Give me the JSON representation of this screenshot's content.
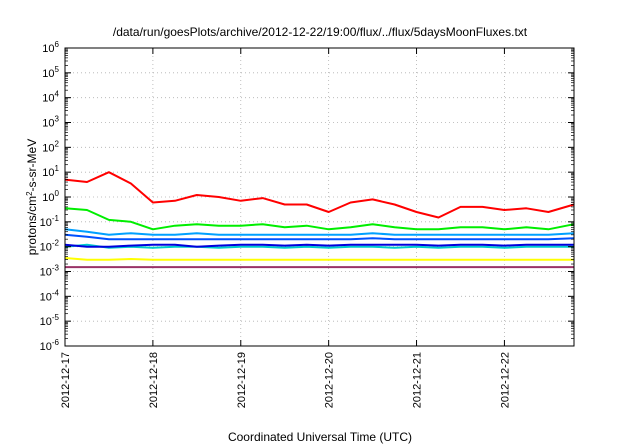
{
  "chart_data": {
    "type": "line",
    "title": "/data/run/goesPlots/archive/2012-12-22/19:00/flux/../flux/5daysMoonFluxes.txt",
    "xlabel": "Coordinated Universal Time (UTC)",
    "ylabel": "protons/cm2-s-sr-MeV",
    "y_scale": "log",
    "ylim": [
      1e-06,
      1000000.0
    ],
    "xlim": [
      "2012-12-17T00:00",
      "2012-12-22T19:00"
    ],
    "grid": true,
    "legend": "none",
    "x_tick_labels": [
      "2012-12-17",
      "2012-12-18",
      "2012-12-19",
      "2012-12-20",
      "2012-12-21",
      "2012-12-22"
    ],
    "y_tick_labels": [
      "10-6",
      "10-5",
      "10-4",
      "10-3",
      "10-2",
      "10-1",
      "100",
      "101",
      "102",
      "103",
      "104",
      "105",
      "106"
    ],
    "x": [
      "2012-12-17T00:00",
      "2012-12-17T06:00",
      "2012-12-17T12:00",
      "2012-12-17T18:00",
      "2012-12-18T00:00",
      "2012-12-18T06:00",
      "2012-12-18T12:00",
      "2012-12-18T18:00",
      "2012-12-19T00:00",
      "2012-12-19T06:00",
      "2012-12-19T12:00",
      "2012-12-19T18:00",
      "2012-12-20T00:00",
      "2012-12-20T06:00",
      "2012-12-20T12:00",
      "2012-12-20T18:00",
      "2012-12-21T00:00",
      "2012-12-21T06:00",
      "2012-12-21T12:00",
      "2012-12-21T18:00",
      "2012-12-22T00:00",
      "2012-12-22T06:00",
      "2012-12-22T12:00",
      "2012-12-22T19:00"
    ],
    "series": [
      {
        "color": "#ff0000",
        "values": [
          5,
          4,
          10,
          3.5,
          0.6,
          0.7,
          1.2,
          1.0,
          0.7,
          0.9,
          0.5,
          0.5,
          0.25,
          0.6,
          0.8,
          0.5,
          0.25,
          0.15,
          0.4,
          0.4,
          0.3,
          0.35,
          0.25,
          0.5
        ]
      },
      {
        "color": "#00ee00",
        "values": [
          0.35,
          0.3,
          0.12,
          0.1,
          0.05,
          0.07,
          0.08,
          0.07,
          0.07,
          0.08,
          0.06,
          0.07,
          0.05,
          0.06,
          0.08,
          0.06,
          0.05,
          0.05,
          0.06,
          0.06,
          0.05,
          0.06,
          0.05,
          0.08
        ]
      },
      {
        "color": "#00a0ff",
        "values": [
          0.05,
          0.04,
          0.03,
          0.035,
          0.03,
          0.03,
          0.035,
          0.03,
          0.03,
          0.03,
          0.03,
          0.03,
          0.03,
          0.03,
          0.035,
          0.03,
          0.03,
          0.03,
          0.03,
          0.03,
          0.03,
          0.03,
          0.03,
          0.035
        ]
      },
      {
        "color": "#0050ff",
        "values": [
          0.03,
          0.025,
          0.02,
          0.02,
          0.02,
          0.02,
          0.02,
          0.02,
          0.02,
          0.02,
          0.02,
          0.02,
          0.02,
          0.02,
          0.022,
          0.02,
          0.02,
          0.02,
          0.02,
          0.02,
          0.02,
          0.02,
          0.02,
          0.022
        ]
      },
      {
        "color": "#00cccc",
        "values": [
          0.01,
          0.012,
          0.009,
          0.01,
          0.009,
          0.01,
          0.01,
          0.009,
          0.01,
          0.01,
          0.009,
          0.01,
          0.009,
          0.01,
          0.01,
          0.009,
          0.01,
          0.009,
          0.01,
          0.01,
          0.009,
          0.01,
          0.01,
          0.01
        ]
      },
      {
        "color": "#0000dd",
        "values": [
          0.012,
          0.01,
          0.01,
          0.011,
          0.012,
          0.012,
          0.01,
          0.011,
          0.012,
          0.012,
          0.011,
          0.012,
          0.011,
          0.012,
          0.012,
          0.012,
          0.012,
          0.011,
          0.012,
          0.012,
          0.011,
          0.012,
          0.012,
          0.012
        ]
      },
      {
        "color": "#ffff00",
        "values": [
          0.0035,
          0.003,
          0.003,
          0.0032,
          0.003,
          0.003,
          0.003,
          0.003,
          0.003,
          0.003,
          0.003,
          0.003,
          0.003,
          0.003,
          0.003,
          0.003,
          0.003,
          0.003,
          0.003,
          0.003,
          0.003,
          0.003,
          0.003,
          0.003
        ]
      },
      {
        "color": "#993366",
        "values": [
          0.0015,
          0.0015,
          0.0015,
          0.0015,
          0.0015,
          0.0015,
          0.0015,
          0.0015,
          0.0015,
          0.0015,
          0.0015,
          0.0015,
          0.0015,
          0.0015,
          0.0015,
          0.0015,
          0.0015,
          0.0015,
          0.0015,
          0.0015,
          0.0015,
          0.0015,
          0.0015,
          0.0015
        ]
      }
    ]
  }
}
